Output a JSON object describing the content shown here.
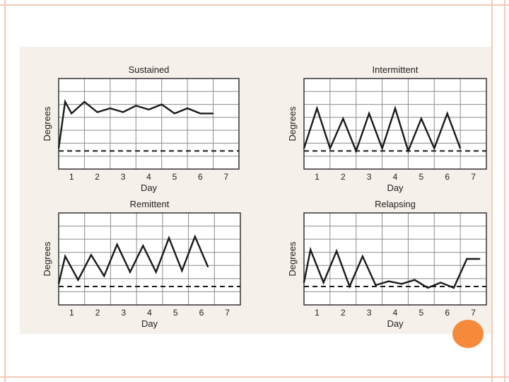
{
  "colors": {
    "frame_border": "#f6c9b4",
    "panel_background": "#f6f0ea",
    "line": "#1a1a1a",
    "grid": "#8c8c8c",
    "accent_dot": "#f58a3a"
  },
  "chart_data": [
    {
      "type": "line",
      "title": "Sustained",
      "xlabel": "Day",
      "ylabel": "Degrees",
      "xlim": [
        0.5,
        7.5
      ],
      "ylim": [
        0,
        7
      ],
      "x_ticks": [
        "1",
        "2",
        "3",
        "4",
        "5",
        "6",
        "7"
      ],
      "grid": true,
      "baseline": 1.4,
      "series": [
        {
          "x": [
            0.5,
            0.75,
            1.0,
            1.5,
            2.0,
            2.5,
            3.0,
            3.5,
            4.0,
            4.5,
            5.0,
            5.5,
            6.0,
            6.5
          ],
          "y": [
            1.6,
            5.2,
            4.3,
            5.2,
            4.4,
            4.7,
            4.4,
            4.9,
            4.6,
            5.0,
            4.3,
            4.7,
            4.3,
            4.3
          ]
        }
      ]
    },
    {
      "type": "line",
      "title": "Intermittent",
      "xlabel": "Day",
      "ylabel": "Degrees",
      "xlim": [
        0.5,
        7.5
      ],
      "ylim": [
        0,
        7
      ],
      "x_ticks": [
        "1",
        "2",
        "3",
        "4",
        "5",
        "6",
        "7"
      ],
      "grid": true,
      "baseline": 1.4,
      "series": [
        {
          "x": [
            0.5,
            1.0,
            1.5,
            2.0,
            2.5,
            3.0,
            3.5,
            4.0,
            4.5,
            5.0,
            5.5,
            6.0,
            6.5
          ],
          "y": [
            1.6,
            4.7,
            1.6,
            3.9,
            1.4,
            4.3,
            1.6,
            4.7,
            1.4,
            3.9,
            1.6,
            4.3,
            1.6
          ]
        }
      ]
    },
    {
      "type": "line",
      "title": "Remittent",
      "xlabel": "Day",
      "ylabel": "Degrees",
      "xlim": [
        0.5,
        7.5
      ],
      "ylim": [
        0,
        7
      ],
      "x_ticks": [
        "1",
        "2",
        "3",
        "4",
        "5",
        "6",
        "7"
      ],
      "grid": true,
      "baseline": 1.4,
      "series": [
        {
          "x": [
            0.5,
            0.75,
            1.25,
            1.75,
            2.25,
            2.75,
            3.25,
            3.75,
            4.25,
            4.75,
            5.25,
            5.75,
            6.25
          ],
          "y": [
            1.6,
            3.7,
            1.9,
            3.8,
            2.2,
            4.6,
            2.5,
            4.5,
            2.5,
            5.1,
            2.6,
            5.2,
            2.9
          ]
        }
      ]
    },
    {
      "type": "line",
      "title": "Relapsing",
      "xlabel": "Day",
      "ylabel": "Degrees",
      "xlim": [
        0.5,
        7.5
      ],
      "ylim": [
        0,
        7
      ],
      "x_ticks": [
        "1",
        "2",
        "3",
        "4",
        "5",
        "6",
        "7"
      ],
      "grid": true,
      "baseline": 1.4,
      "series": [
        {
          "x": [
            0.5,
            0.75,
            1.25,
            1.75,
            2.25,
            2.75,
            3.25,
            3.75,
            4.25,
            4.75,
            5.25,
            5.75,
            6.25,
            6.75,
            7.25
          ],
          "y": [
            1.7,
            4.2,
            1.7,
            4.1,
            1.4,
            3.7,
            1.5,
            1.8,
            1.6,
            1.9,
            1.3,
            1.7,
            1.3,
            3.5,
            3.5
          ]
        }
      ]
    }
  ]
}
